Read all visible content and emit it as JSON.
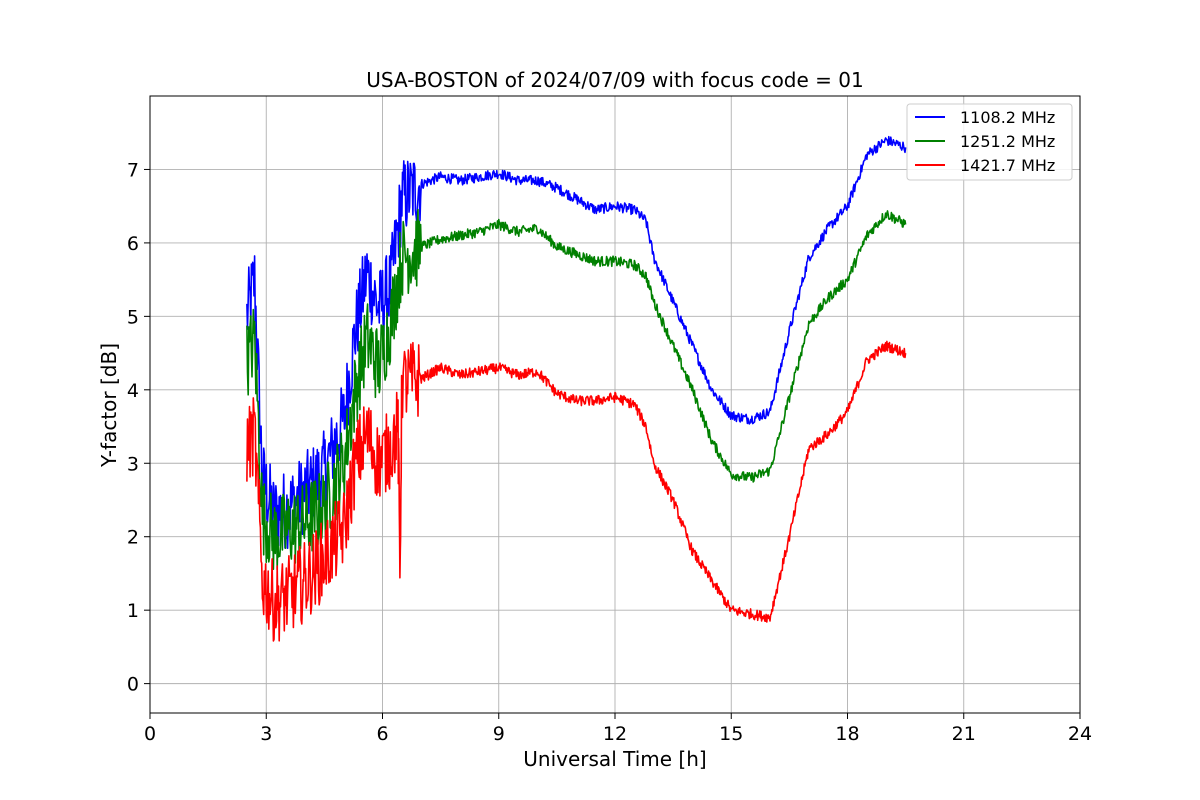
{
  "chart_data": {
    "type": "line",
    "title": "USA-BOSTON of 2024/07/09 with focus code = 01",
    "xlabel": "Universal Time [h]",
    "ylabel": "Y-factor [dB]",
    "xlim": [
      0,
      24
    ],
    "ylim": [
      -0.4,
      8.0
    ],
    "xticks": [
      0,
      3,
      6,
      9,
      12,
      15,
      18,
      21,
      24
    ],
    "xtick_labels": [
      "0",
      "3",
      "6",
      "9",
      "12",
      "15",
      "18",
      "21",
      "24"
    ],
    "yticks": [
      0,
      1,
      2,
      3,
      4,
      5,
      6,
      7
    ],
    "ytick_labels": [
      "0",
      "1",
      "2",
      "3",
      "4",
      "5",
      "6",
      "7"
    ],
    "grid": true,
    "legend_position": "top-right",
    "series": [
      {
        "name": "1108.2 MHz",
        "color": "#0000ff",
        "x": [
          2.5,
          2.7,
          2.9,
          3.2,
          3.6,
          4.0,
          4.5,
          5.0,
          5.3,
          5.6,
          5.9,
          6.2,
          6.5,
          7.0,
          7.5,
          8.0,
          8.5,
          9.0,
          9.5,
          10.0,
          10.5,
          11.0,
          11.5,
          12.0,
          12.5,
          12.8,
          13.0,
          13.5,
          14.0,
          14.5,
          15.0,
          15.5,
          16.0,
          16.5,
          17.0,
          17.5,
          18.0,
          18.5,
          19.0,
          19.5
        ],
        "y": [
          5.0,
          5.5,
          2.8,
          2.3,
          2.4,
          2.6,
          2.9,
          3.6,
          4.8,
          5.6,
          5.1,
          5.4,
          6.6,
          6.8,
          6.9,
          6.85,
          6.9,
          6.95,
          6.85,
          6.85,
          6.75,
          6.6,
          6.45,
          6.5,
          6.45,
          6.3,
          5.8,
          5.2,
          4.6,
          4.0,
          3.65,
          3.6,
          3.7,
          4.8,
          5.8,
          6.2,
          6.5,
          7.2,
          7.4,
          7.3
        ]
      },
      {
        "name": "1251.2 MHz",
        "color": "#008000",
        "x": [
          2.5,
          2.7,
          2.9,
          3.2,
          3.6,
          4.0,
          4.5,
          5.0,
          5.3,
          5.6,
          5.9,
          6.2,
          6.5,
          7.0,
          7.5,
          8.0,
          8.5,
          9.0,
          9.5,
          10.0,
          10.5,
          11.0,
          11.5,
          12.0,
          12.5,
          12.8,
          13.0,
          13.5,
          14.0,
          14.5,
          15.0,
          15.5,
          16.0,
          16.5,
          17.0,
          17.5,
          18.0,
          18.5,
          19.0,
          19.5
        ],
        "y": [
          4.4,
          4.7,
          2.3,
          2.0,
          2.1,
          2.2,
          2.4,
          3.0,
          4.0,
          4.7,
          4.3,
          4.9,
          5.8,
          5.95,
          6.05,
          6.1,
          6.15,
          6.25,
          6.15,
          6.2,
          5.95,
          5.85,
          5.75,
          5.75,
          5.7,
          5.55,
          5.2,
          4.6,
          4.0,
          3.3,
          2.85,
          2.8,
          2.9,
          3.9,
          4.9,
          5.25,
          5.5,
          6.1,
          6.4,
          6.25
        ]
      },
      {
        "name": "1421.7 MHz",
        "color": "#ff0000",
        "x": [
          2.5,
          2.7,
          2.9,
          3.2,
          3.6,
          4.0,
          4.5,
          5.0,
          5.3,
          5.6,
          5.9,
          6.2,
          6.4,
          6.45,
          6.5,
          7.0,
          7.5,
          8.0,
          8.5,
          9.0,
          9.5,
          10.0,
          10.5,
          11.0,
          11.5,
          12.0,
          12.5,
          12.8,
          13.0,
          13.5,
          14.0,
          14.5,
          15.0,
          15.5,
          16.0,
          16.5,
          17.0,
          17.5,
          18.0,
          18.5,
          19.0,
          19.5
        ],
        "y": [
          3.2,
          3.4,
          1.4,
          1.1,
          1.2,
          1.4,
          1.7,
          2.1,
          3.0,
          3.4,
          3.0,
          3.2,
          3.5,
          1.5,
          4.1,
          4.15,
          4.3,
          4.2,
          4.25,
          4.3,
          4.2,
          4.25,
          3.95,
          3.85,
          3.85,
          3.9,
          3.8,
          3.5,
          3.0,
          2.5,
          1.8,
          1.4,
          1.0,
          0.95,
          0.9,
          2.0,
          3.2,
          3.4,
          3.7,
          4.4,
          4.6,
          4.5
        ]
      }
    ]
  }
}
